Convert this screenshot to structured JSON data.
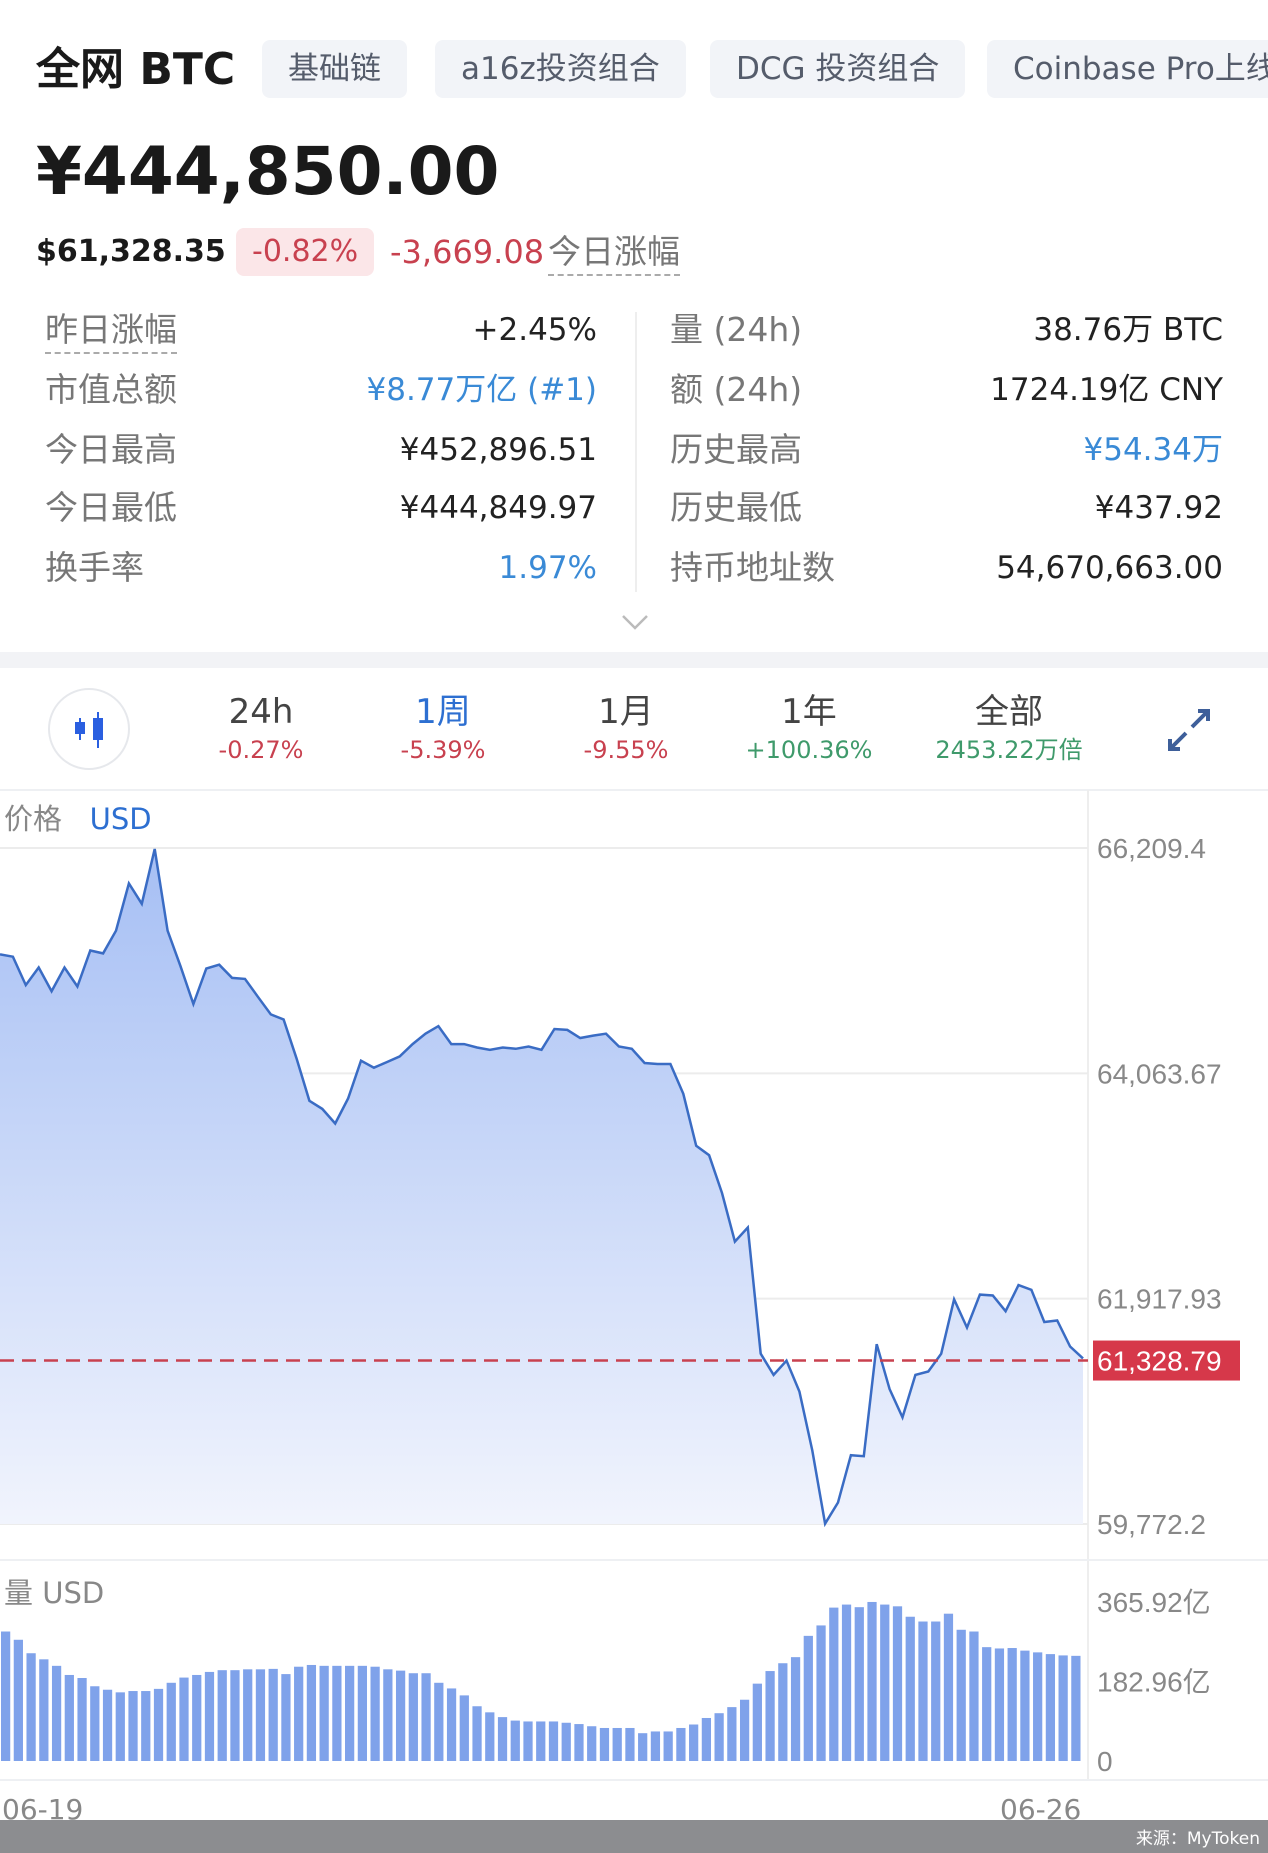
{
  "header": {
    "title": "全网 BTC",
    "chips": [
      "基础链",
      "a16z投资组合",
      "DCG 投资组合",
      "Coinbase Pro上线"
    ]
  },
  "price": {
    "cny": "¥444,850.00",
    "usd": "$61,328.35",
    "change_pct": "-0.82%",
    "change_abs": "-3,669.08",
    "change_label": "今日涨幅"
  },
  "stats": {
    "left": [
      {
        "label": "昨日涨幅",
        "value": "+2.45%"
      },
      {
        "label": "市值总额",
        "value": "¥8.77万亿 (#1)"
      },
      {
        "label": "今日最高",
        "value": "¥452,896.51"
      },
      {
        "label": "今日最低",
        "value": "¥444,849.97"
      },
      {
        "label": "换手率",
        "value": "1.97%"
      }
    ],
    "right": [
      {
        "label": "量 (24h)",
        "value": "38.76万 BTC"
      },
      {
        "label": "额 (24h)",
        "value": "1724.19亿 CNY"
      },
      {
        "label": "历史最高",
        "value": "¥54.34万"
      },
      {
        "label": "历史最低",
        "value": "¥437.92"
      },
      {
        "label": "持币地址数",
        "value": "54,670,663.00"
      }
    ]
  },
  "periods": [
    {
      "label": "24h",
      "change": "-0.27%",
      "tone": "red"
    },
    {
      "label": "1周",
      "change": "-5.39%",
      "tone": "red",
      "active": true
    },
    {
      "label": "1月",
      "change": "-9.55%",
      "tone": "red"
    },
    {
      "label": "1年",
      "change": "+100.36%",
      "tone": "green"
    },
    {
      "label": "全部",
      "change": "2453.22万倍",
      "tone": "green"
    }
  ],
  "icons": {
    "candle": "candlestick-icon",
    "expand": "expand-icon",
    "chevron": "chevron-down-icon"
  },
  "colors": {
    "accent": "#2d6fd1",
    "up": "#3f9a6b",
    "down": "#c8414f",
    "line": "#3a6cc4",
    "bar": "#7fa2ea"
  },
  "chart_data": [
    {
      "type": "area",
      "label": "价格",
      "unit": "USD",
      "y_ticks": [
        "66,209.4",
        "64,063.67",
        "61,917.93",
        "59,772.2"
      ],
      "ylim": [
        59772.2,
        66209.4
      ],
      "current_value": "61,328.79",
      "x_labels": [
        "06-19",
        "06-26"
      ],
      "values": [
        65197,
        65174,
        64904,
        65071,
        64846,
        65071,
        64891,
        65233,
        65206,
        65422,
        65872,
        65678,
        66200,
        65422,
        65084,
        64724,
        65062,
        65098,
        64972,
        64963,
        64792,
        64625,
        64576,
        64207,
        63802,
        63725,
        63586,
        63824,
        64184,
        64117,
        64171,
        64225,
        64342,
        64441,
        64513,
        64342,
        64342,
        64310,
        64288,
        64310,
        64297,
        64319,
        64288,
        64486,
        64477,
        64400,
        64423,
        64441,
        64319,
        64297,
        64162,
        64153,
        64153,
        63869,
        63374,
        63284,
        62924,
        62461,
        62596,
        61394,
        61192,
        61327,
        61034,
        60472,
        59775,
        59977,
        60427,
        60418,
        61484,
        61057,
        60787,
        61192,
        61224,
        61394,
        61912,
        61642,
        61957,
        61948,
        61799,
        62047,
        62002,
        61696,
        61710,
        61462,
        61349
      ]
    },
    {
      "type": "bar",
      "label": "量",
      "unit": "USD",
      "y_ticks": [
        "365.92亿",
        "182.96亿",
        "0"
      ],
      "ylim": [
        0,
        365.92
      ],
      "values_unit": "亿",
      "values": [
        298,
        279,
        248,
        234,
        219,
        198,
        191,
        172,
        164,
        158,
        161,
        161,
        166,
        180,
        192,
        198,
        205,
        209,
        209,
        211,
        211,
        212,
        200,
        217,
        221,
        219,
        219,
        219,
        219,
        217,
        211,
        208,
        202,
        202,
        180,
        167,
        151,
        126,
        112,
        101,
        93,
        91,
        91,
        91,
        88,
        85,
        80,
        76,
        76,
        76,
        64,
        68,
        68,
        76,
        84,
        99,
        110,
        124,
        141,
        178,
        207,
        225,
        239,
        288,
        312,
        353,
        360,
        354,
        366,
        360,
        356,
        332,
        321,
        321,
        339,
        302,
        298,
        262,
        259,
        260,
        254,
        250,
        246,
        243,
        242
      ]
    }
  ],
  "footer": {
    "source": "来源：MyToken"
  }
}
